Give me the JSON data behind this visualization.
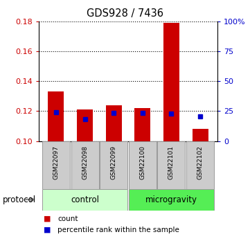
{
  "title": "GDS928 / 7436",
  "samples": [
    "GSM22097",
    "GSM22098",
    "GSM22099",
    "GSM22100",
    "GSM22101",
    "GSM22102"
  ],
  "count_values": [
    0.133,
    0.121,
    0.124,
    0.122,
    0.179,
    0.108
  ],
  "percentile_values": [
    0.1193,
    0.1145,
    0.119,
    0.1188,
    0.1185,
    0.1165
  ],
  "ylim_left": [
    0.1,
    0.18
  ],
  "ylim_right": [
    0,
    100
  ],
  "yticks_left": [
    0.1,
    0.12,
    0.14,
    0.16,
    0.18
  ],
  "yticks_right": [
    0,
    25,
    50,
    75,
    100
  ],
  "ytick_labels_right": [
    "0",
    "25",
    "50",
    "75",
    "100%"
  ],
  "bar_color": "#cc0000",
  "percentile_color": "#0000cc",
  "groups": [
    {
      "label": "control",
      "indices": [
        0,
        1,
        2
      ],
      "color": "#ccffcc"
    },
    {
      "label": "microgravity",
      "indices": [
        3,
        4,
        5
      ],
      "color": "#55ee55"
    }
  ],
  "protocol_label": "protocol",
  "legend_count_label": "count",
  "legend_percentile_label": "percentile rank within the sample",
  "bar_width": 0.55,
  "sample_box_color": "#cccccc",
  "sample_box_edge": "#999999"
}
